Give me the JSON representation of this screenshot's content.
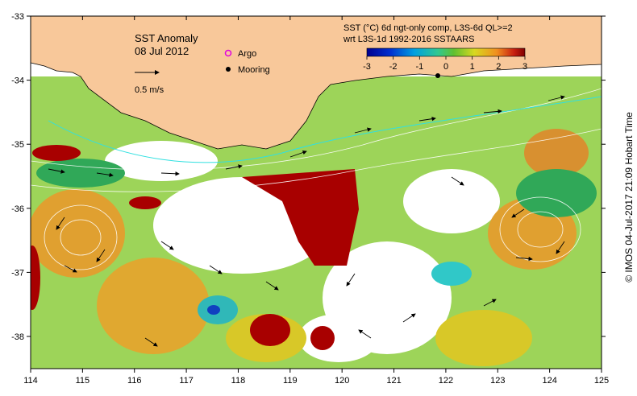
{
  "map": {
    "title_line1": "SST Anomaly",
    "title_line2": "08 Jul 2012",
    "scale_label": "0.5 m/s",
    "legend": {
      "argo_label": "Argo",
      "mooring_label": "Mooring"
    },
    "colorbar": {
      "title_line1": "SST (°C) 6d ngt-only comp, L3S-6d QL>=2",
      "title_line2": "wrt L3S-1d 1992-2016 SSTAARS",
      "ticks": [
        "-3",
        "-2",
        "-1",
        "0",
        "1",
        "2",
        "3"
      ]
    },
    "x_ticks": [
      "114",
      "115",
      "116",
      "117",
      "118",
      "119",
      "120",
      "121",
      "122",
      "123",
      "124",
      "125"
    ],
    "y_ticks": [
      "-33",
      "-34",
      "-35",
      "-36",
      "-37",
      "-38"
    ],
    "side_label": "© IMOS 04-Jul-2017 21:09 Hobart Time",
    "colors": {
      "land": "#f8c89a",
      "warm": "#a80000",
      "orange": "#e89a20",
      "yellow": "#d8d820",
      "green": "#40b848",
      "cyan": "#30c8c8",
      "blue": "#1040c0"
    }
  }
}
